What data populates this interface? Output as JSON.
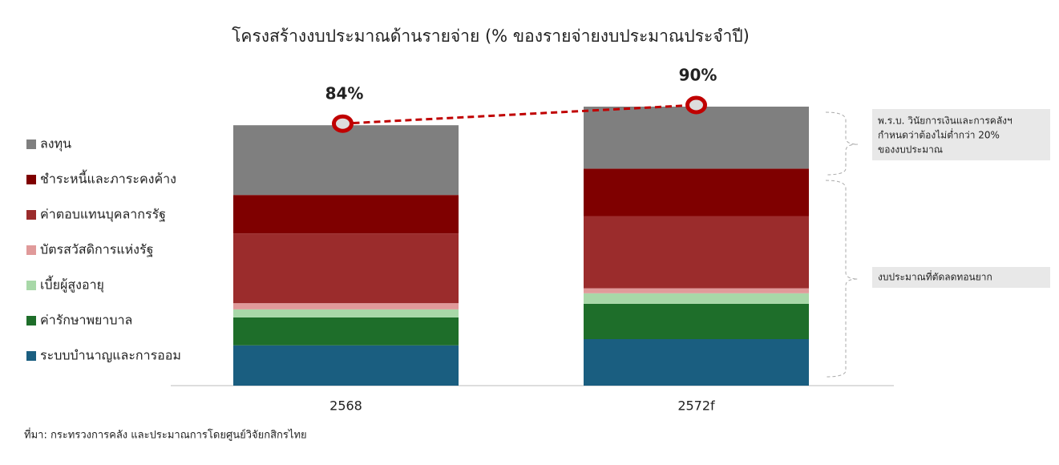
{
  "chart_data": {
    "type": "stacked_bar",
    "title": "โครงสร้างงบประมาณด้านรายจ่าย (% ของรายจ่ายงบประมาณประจำปี)",
    "categories": [
      "2568",
      "2572f"
    ],
    "series": [
      {
        "name": "ระบบบำนาญและการออม",
        "color": "#1a5e80",
        "values": [
          13,
          15
        ]
      },
      {
        "name": "ค่ารักษาพยาบาล",
        "color": "#1e6e2a",
        "values": [
          9,
          11.4
        ]
      },
      {
        "name": "เบี้ยผู้สูงอายุ",
        "color": "#a8d8a8",
        "values": [
          2.6,
          3.4
        ]
      },
      {
        "name": "บัตรสวัสดิการแห่งรัฐ",
        "color": "#e09a9a",
        "values": [
          2,
          1.6
        ]
      },
      {
        "name": "ค่าตอบแทนบุคลากรรัฐ",
        "color": "#9b2c2c",
        "values": [
          22.5,
          23.3
        ]
      },
      {
        "name": "ชำระหนี้และภาระคงค้าง",
        "color": "#7f0000",
        "values": [
          12.4,
          15.3
        ]
      },
      {
        "name": "ลงทุน",
        "color": "#7f7f7f",
        "values": [
          22.5,
          20
        ]
      }
    ],
    "totals": [
      84,
      90
    ],
    "total_labels": [
      "84%",
      "90%"
    ],
    "total_color": "#c00000",
    "annotations": [
      [
        "พ.ร.บ. วินัยการเงินและการคลังฯ",
        "กำหนดว่าต้องไม่ต่ำกว่า 20%",
        "ของงบประมาณ"
      ],
      [
        "งบประมาณที่ตัดลดทอนยาก"
      ]
    ],
    "source": "ที่มา: กระทรวงการคลัง และประมาณการโดยศูนย์วิจัยกสิกรไทย"
  }
}
